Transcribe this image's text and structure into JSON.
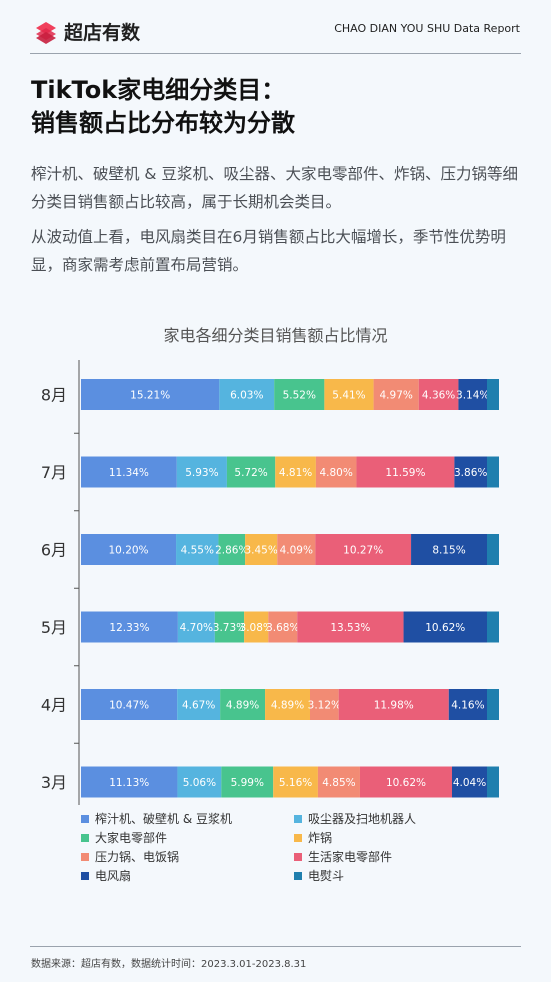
{
  "header": {
    "logo_text": "超店有数",
    "report_label": "CHAO DIAN YOU SHU Data Report"
  },
  "title_line1": "TikTok家电细分类目：",
  "title_line2": "销售额占比分布较为分散",
  "desc1": "榨汁机、破壁机 & 豆浆机、吸尘器、大家电零部件、炸锅、压力锅等细分类目销售额占比较高，属于长期机会类目。",
  "desc2": "从波动值上看，电风扇类目在6月销售额占比大幅增长，季节性优势明显，商家需考虑前置布局营销。",
  "footer": {
    "source": "数据来源：超店有数，数据统计时间：2023.3.01-2023.8.31"
  },
  "chart_data": {
    "type": "bar",
    "orientation": "horizontal",
    "stacked": true,
    "title": "家电各细分类目销售额占比情况",
    "categories": [
      "8月",
      "7月",
      "6月",
      "5月",
      "4月",
      "3月"
    ],
    "series": [
      {
        "name": "榨汁机、破壁机 & 豆浆机",
        "color": "#5b8fe0",
        "values": [
          15.21,
          11.34,
          10.2,
          12.33,
          10.47,
          11.13
        ]
      },
      {
        "name": "吸尘器及扫地机器人",
        "color": "#55b4df",
        "values": [
          6.03,
          5.93,
          4.55,
          4.7,
          4.67,
          5.06
        ]
      },
      {
        "name": "大家电零部件",
        "color": "#48c48e",
        "values": [
          5.52,
          5.72,
          2.86,
          3.73,
          4.89,
          5.99
        ]
      },
      {
        "name": "炸锅",
        "color": "#f8b84a",
        "values": [
          5.41,
          4.81,
          3.45,
          3.08,
          4.89,
          5.16
        ]
      },
      {
        "name": "压力锅、电饭锅",
        "color": "#f28b74",
        "values": [
          4.97,
          4.8,
          4.09,
          3.68,
          3.12,
          4.85
        ]
      },
      {
        "name": "生活家电零部件",
        "color": "#ea5f78",
        "values": [
          4.36,
          11.59,
          10.27,
          13.53,
          11.98,
          10.62
        ]
      },
      {
        "name": "电风扇",
        "color": "#1f4fa3",
        "values": [
          3.14,
          3.86,
          8.15,
          10.62,
          4.16,
          4.04
        ]
      },
      {
        "name": "电熨斗",
        "color": "#1f7fae",
        "values": [
          null,
          null,
          null,
          null,
          null,
          null
        ]
      }
    ],
    "data_labels": [
      [
        "15.21%",
        "6.03%",
        "5.52%",
        "5.41%",
        "4.97%",
        "4.36%",
        "3.14%",
        ""
      ],
      [
        "11.34%",
        "5.93%",
        "5.72%",
        "4.81%",
        "4.80%",
        "11.59%",
        "3.86%",
        ""
      ],
      [
        "10.20%",
        "4.55%",
        "2.86%",
        "3.45%",
        "4.09%",
        "10.27%",
        "8.15%",
        ""
      ],
      [
        "12.33%",
        "4.70%",
        "3.73%",
        "3.08%",
        "3.68%",
        "13.53%",
        "10.62%",
        ""
      ],
      [
        "10.47%",
        "4.67%",
        "4.89%",
        "4.89%",
        "3.12%",
        "11.98%",
        "4.16%",
        ""
      ],
      [
        "11.13%",
        "5.06%",
        "5.99%",
        "5.16%",
        "4.85%",
        "10.62%",
        "4.04%",
        ""
      ]
    ],
    "legend_position": "bottom",
    "grid": false
  }
}
